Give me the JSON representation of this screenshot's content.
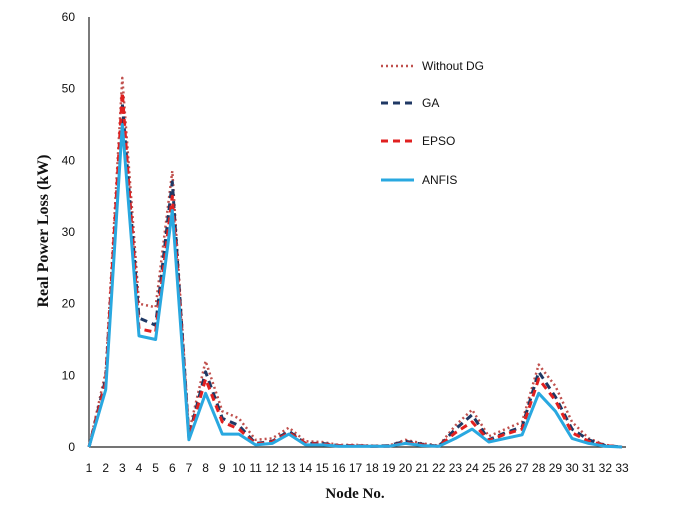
{
  "chart_data": {
    "type": "line",
    "title": "",
    "xlabel": "Node No.",
    "ylabel": "Real Power Loss (kW)",
    "ylim": [
      0,
      60
    ],
    "yticks": [
      0,
      10,
      20,
      30,
      40,
      50,
      60
    ],
    "grid": false,
    "legend_position": "top-right",
    "x": [
      1,
      2,
      3,
      4,
      5,
      6,
      7,
      8,
      9,
      10,
      11,
      12,
      13,
      14,
      15,
      16,
      17,
      18,
      19,
      20,
      21,
      22,
      23,
      24,
      25,
      26,
      27,
      28,
      29,
      30,
      31,
      32,
      33
    ],
    "series": [
      {
        "name": "Without DG",
        "color": "#c0504d",
        "style": "dotted",
        "values": [
          0,
          10.5,
          51.5,
          20,
          19.5,
          38.5,
          2,
          12,
          5,
          4,
          1,
          1.2,
          2.7,
          0.8,
          0.7,
          0.3,
          0.3,
          0.2,
          0.2,
          1,
          0.5,
          0.2,
          3,
          5.2,
          1.5,
          2.5,
          3.5,
          11.5,
          8.5,
          3.5,
          1.2,
          0.3,
          0
        ]
      },
      {
        "name": "GA",
        "color": "#1f3864",
        "style": "dashed",
        "values": [
          0,
          9.5,
          48,
          18,
          17,
          37,
          1.5,
          10.5,
          4,
          3,
          0.5,
          0.8,
          2.2,
          0.5,
          0.5,
          0.2,
          0.2,
          0.1,
          0.2,
          0.8,
          0.4,
          0.1,
          2.5,
          4.5,
          1,
          2,
          2.8,
          10.5,
          7,
          2.5,
          1,
          0.2,
          0
        ]
      },
      {
        "name": "EPSO",
        "color": "#e02020",
        "style": "dashed",
        "values": [
          0,
          9,
          49.5,
          16.5,
          16,
          35,
          1.3,
          9.5,
          3.5,
          2.5,
          0.4,
          0.7,
          2,
          0.5,
          0.4,
          0.2,
          0.2,
          0.1,
          0.1,
          0.6,
          0.3,
          0.1,
          2,
          3.5,
          0.9,
          1.8,
          2.5,
          9.5,
          6.5,
          2,
          0.8,
          0.2,
          0
        ]
      },
      {
        "name": "ANFIS",
        "color": "#29a8e0",
        "style": "solid",
        "values": [
          0,
          8,
          45,
          15.5,
          15,
          33,
          1,
          7.5,
          1.8,
          1.8,
          0.3,
          0.5,
          1.8,
          0.3,
          0.3,
          0.1,
          0.1,
          0.1,
          0.1,
          0.5,
          0.2,
          0.1,
          1.2,
          2.5,
          0.7,
          1.2,
          1.7,
          7.5,
          5,
          1.2,
          0.5,
          0.1,
          0
        ]
      }
    ]
  }
}
